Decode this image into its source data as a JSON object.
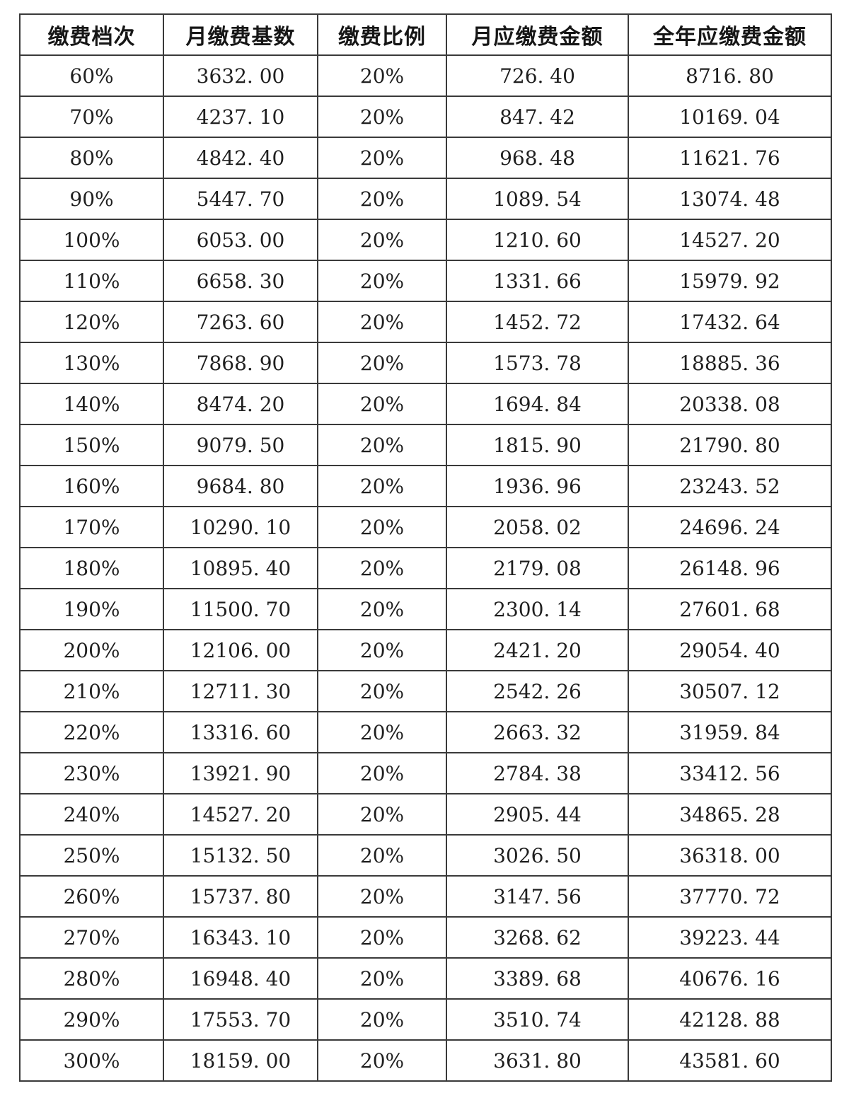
{
  "page": {
    "background_color": "#ffffff",
    "border_color": "#3a3a3a",
    "text_color": "#1f1f1f"
  },
  "table": {
    "headers": [
      "缴费档次",
      "月缴费基数",
      "缴费比例",
      "月应缴费金额",
      "全年应缴费金额"
    ],
    "rows": [
      [
        "60%",
        "3632. 00",
        "20%",
        "726. 40",
        "8716. 80"
      ],
      [
        "70%",
        "4237. 10",
        "20%",
        "847. 42",
        "10169. 04"
      ],
      [
        "80%",
        "4842. 40",
        "20%",
        "968. 48",
        "11621. 76"
      ],
      [
        "90%",
        "5447. 70",
        "20%",
        "1089. 54",
        "13074. 48"
      ],
      [
        "100%",
        "6053. 00",
        "20%",
        "1210. 60",
        "14527. 20"
      ],
      [
        "110%",
        "6658. 30",
        "20%",
        "1331. 66",
        "15979. 92"
      ],
      [
        "120%",
        "7263. 60",
        "20%",
        "1452. 72",
        "17432. 64"
      ],
      [
        "130%",
        "7868. 90",
        "20%",
        "1573. 78",
        "18885. 36"
      ],
      [
        "140%",
        "8474. 20",
        "20%",
        "1694. 84",
        "20338. 08"
      ],
      [
        "150%",
        "9079. 50",
        "20%",
        "1815. 90",
        "21790. 80"
      ],
      [
        "160%",
        "9684. 80",
        "20%",
        "1936. 96",
        "23243. 52"
      ],
      [
        "170%",
        "10290. 10",
        "20%",
        "2058. 02",
        "24696. 24"
      ],
      [
        "180%",
        "10895. 40",
        "20%",
        "2179. 08",
        "26148. 96"
      ],
      [
        "190%",
        "11500. 70",
        "20%",
        "2300. 14",
        "27601. 68"
      ],
      [
        "200%",
        "12106. 00",
        "20%",
        "2421. 20",
        "29054. 40"
      ],
      [
        "210%",
        "12711. 30",
        "20%",
        "2542. 26",
        "30507. 12"
      ],
      [
        "220%",
        "13316. 60",
        "20%",
        "2663. 32",
        "31959. 84"
      ],
      [
        "230%",
        "13921. 90",
        "20%",
        "2784. 38",
        "33412. 56"
      ],
      [
        "240%",
        "14527. 20",
        "20%",
        "2905. 44",
        "34865. 28"
      ],
      [
        "250%",
        "15132. 50",
        "20%",
        "3026. 50",
        "36318. 00"
      ],
      [
        "260%",
        "15737. 80",
        "20%",
        "3147. 56",
        "37770. 72"
      ],
      [
        "270%",
        "16343. 10",
        "20%",
        "3268. 62",
        "39223. 44"
      ],
      [
        "280%",
        "16948. 40",
        "20%",
        "3389. 68",
        "40676. 16"
      ],
      [
        "290%",
        "17553. 70",
        "20%",
        "3510. 74",
        "42128. 88"
      ],
      [
        "300%",
        "18159. 00",
        "20%",
        "3631. 80",
        "43581. 60"
      ]
    ]
  }
}
